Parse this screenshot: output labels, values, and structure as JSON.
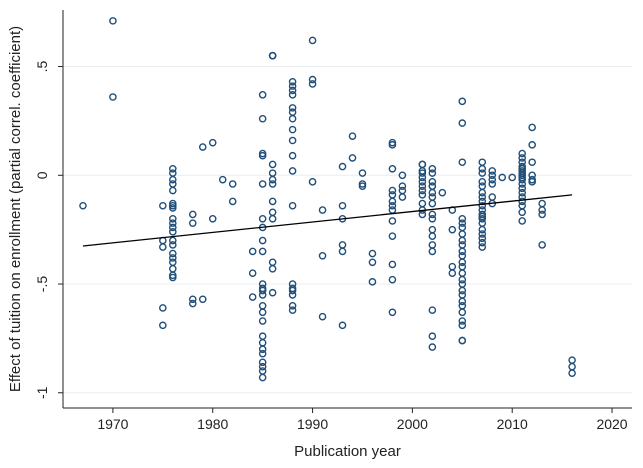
{
  "chart_data": {
    "type": "scatter",
    "xlabel": "Publication year",
    "ylabel": "Effect of tuition on enrollment (partial correl. coefficient)",
    "xlim": [
      1965,
      2022
    ],
    "ylim": [
      -1.07,
      0.76
    ],
    "xticks": [
      1970,
      1980,
      1990,
      2000,
      2010,
      2020
    ],
    "xtick_labels": [
      "1970",
      "1980",
      "1990",
      "2000",
      "2010",
      "2020"
    ],
    "yticks": [
      -1,
      -0.5,
      0,
      0.5
    ],
    "ytick_labels": [
      "-1",
      "-.5",
      "0",
      ".5"
    ],
    "grid": "horizontal",
    "series": [
      {
        "kind": "scatter",
        "marker": "hollow-circle",
        "color": "#1f4e79",
        "x": [
          1967,
          1970,
          1970,
          1975,
          1975,
          1975,
          1975,
          1975,
          1976,
          1976,
          1976,
          1976,
          1976,
          1976,
          1976,
          1976,
          1976,
          1976,
          1976,
          1976,
          1976,
          1976,
          1976,
          1976,
          1976,
          1976,
          1976,
          1976,
          1978,
          1978,
          1978,
          1978,
          1979,
          1979,
          1980,
          1980,
          1981,
          1982,
          1982,
          1984,
          1984,
          1984,
          1985,
          1985,
          1985,
          1985,
          1985,
          1985,
          1985,
          1985,
          1985,
          1985,
          1985,
          1985,
          1985,
          1985,
          1985,
          1985,
          1985,
          1985,
          1985,
          1985,
          1985,
          1985,
          1985,
          1985,
          1986,
          1986,
          1986,
          1986,
          1986,
          1986,
          1986,
          1986,
          1986,
          1986,
          1986,
          1986,
          1986,
          1988,
          1988,
          1988,
          1988,
          1988,
          1988,
          1988,
          1988,
          1988,
          1988,
          1988,
          1988,
          1988,
          1988,
          1988,
          1988,
          1988,
          1988,
          1990,
          1990,
          1990,
          1990,
          1991,
          1991,
          1991,
          1993,
          1993,
          1993,
          1993,
          1993,
          1993,
          1994,
          1994,
          1995,
          1995,
          1995,
          1996,
          1996,
          1996,
          1998,
          1998,
          1998,
          1998,
          1998,
          1998,
          1998,
          1998,
          1998,
          1998,
          1998,
          1998,
          1998,
          1999,
          1999,
          1999,
          1999,
          2001,
          2001,
          2001,
          2001,
          2001,
          2001,
          2001,
          2001,
          2001,
          2001,
          2001,
          2001,
          2002,
          2002,
          2002,
          2002,
          2002,
          2002,
          2002,
          2002,
          2002,
          2002,
          2002,
          2002,
          2002,
          2002,
          2002,
          2002,
          2002,
          2003,
          2004,
          2004,
          2004,
          2004,
          2005,
          2005,
          2005,
          2005,
          2005,
          2005,
          2005,
          2005,
          2005,
          2005,
          2005,
          2005,
          2005,
          2005,
          2005,
          2005,
          2005,
          2005,
          2005,
          2005,
          2005,
          2005,
          2005,
          2005,
          2005,
          2007,
          2007,
          2007,
          2007,
          2007,
          2007,
          2007,
          2007,
          2007,
          2007,
          2007,
          2007,
          2007,
          2007,
          2007,
          2007,
          2007,
          2007,
          2007,
          2008,
          2008,
          2008,
          2008,
          2008,
          2008,
          2009,
          2010,
          2011,
          2011,
          2011,
          2011,
          2011,
          2011,
          2011,
          2011,
          2011,
          2011,
          2011,
          2011,
          2011,
          2011,
          2011,
          2011,
          2011,
          2011,
          2012,
          2012,
          2012,
          2012,
          2012,
          2012,
          2013,
          2013,
          2013,
          2013,
          2016,
          2016,
          2016
        ],
        "y": [
          -0.14,
          0.71,
          0.36,
          -0.3,
          -0.33,
          -0.61,
          -0.69,
          -0.14,
          0.03,
          0.01,
          -0.02,
          -0.04,
          -0.07,
          -0.13,
          -0.15,
          -0.2,
          -0.22,
          -0.24,
          -0.26,
          -0.3,
          -0.32,
          -0.36,
          -0.38,
          -0.4,
          -0.43,
          -0.46,
          -0.47,
          -0.14,
          -0.18,
          -0.22,
          -0.57,
          -0.59,
          0.13,
          -0.57,
          0.15,
          -0.2,
          -0.02,
          -0.04,
          -0.12,
          -0.35,
          -0.45,
          -0.56,
          0.37,
          0.26,
          0.1,
          0.09,
          -0.04,
          -0.2,
          -0.24,
          -0.3,
          -0.35,
          -0.5,
          -0.52,
          -0.55,
          -0.6,
          -0.67,
          -0.74,
          -0.77,
          -0.8,
          -0.86,
          -0.9,
          -0.93,
          -0.53,
          -0.63,
          -0.82,
          -0.88,
          0.55,
          0.55,
          0.05,
          0.01,
          -0.02,
          -0.04,
          -0.12,
          -0.17,
          -0.2,
          -0.4,
          -0.43,
          -0.54,
          0.55,
          0.43,
          0.41,
          0.39,
          0.37,
          0.31,
          0.29,
          0.26,
          0.21,
          0.16,
          0.09,
          0.02,
          -0.14,
          -0.5,
          -0.52,
          -0.53,
          -0.55,
          -0.6,
          -0.62,
          0.62,
          0.44,
          0.42,
          -0.03,
          -0.16,
          -0.37,
          -0.65,
          0.04,
          -0.14,
          -0.2,
          -0.32,
          -0.35,
          -0.69,
          0.18,
          0.08,
          0.01,
          -0.04,
          -0.05,
          -0.36,
          -0.4,
          -0.49,
          0.15,
          0.14,
          0.03,
          -0.07,
          -0.09,
          -0.12,
          -0.14,
          -0.16,
          -0.21,
          -0.28,
          -0.41,
          -0.48,
          -0.63,
          -0.05,
          -0.07,
          -0.1,
          0.0,
          0.05,
          0.05,
          0.02,
          0.01,
          -0.01,
          -0.03,
          -0.05,
          -0.07,
          -0.09,
          -0.13,
          -0.16,
          -0.18,
          0.03,
          0.01,
          -0.03,
          -0.05,
          -0.08,
          -0.1,
          -0.13,
          -0.18,
          -0.2,
          -0.25,
          -0.28,
          -0.32,
          -0.35,
          -0.62,
          -0.74,
          -0.79,
          -0.05,
          -0.08,
          -0.16,
          -0.25,
          -0.42,
          -0.45,
          0.34,
          0.24,
          0.06,
          -0.2,
          -0.22,
          -0.24,
          -0.27,
          -0.3,
          -0.32,
          -0.35,
          -0.37,
          -0.4,
          -0.42,
          -0.45,
          -0.48,
          -0.5,
          -0.53,
          -0.55,
          -0.58,
          -0.6,
          -0.63,
          -0.67,
          -0.69,
          -0.76,
          -0.76,
          0.06,
          0.03,
          0.01,
          -0.03,
          -0.05,
          -0.08,
          -0.1,
          -0.12,
          -0.14,
          -0.16,
          -0.18,
          -0.2,
          -0.22,
          -0.25,
          -0.27,
          -0.29,
          -0.31,
          -0.33,
          -0.19,
          0.02,
          0.0,
          -0.02,
          -0.04,
          -0.1,
          -0.13,
          -0.01,
          -0.01,
          0.1,
          0.08,
          0.06,
          0.04,
          0.03,
          0.02,
          0.01,
          0.0,
          -0.01,
          -0.02,
          -0.04,
          -0.06,
          -0.08,
          -0.1,
          -0.12,
          -0.14,
          -0.17,
          -0.21,
          0.22,
          0.14,
          0.06,
          0.0,
          -0.02,
          -0.03,
          -0.13,
          -0.16,
          -0.18,
          -0.32,
          -0.85,
          -0.88,
          -0.91
        ]
      },
      {
        "kind": "line",
        "color": "#000000",
        "x": [
          1967,
          2016
        ],
        "y": [
          -0.325,
          -0.09
        ]
      }
    ]
  }
}
